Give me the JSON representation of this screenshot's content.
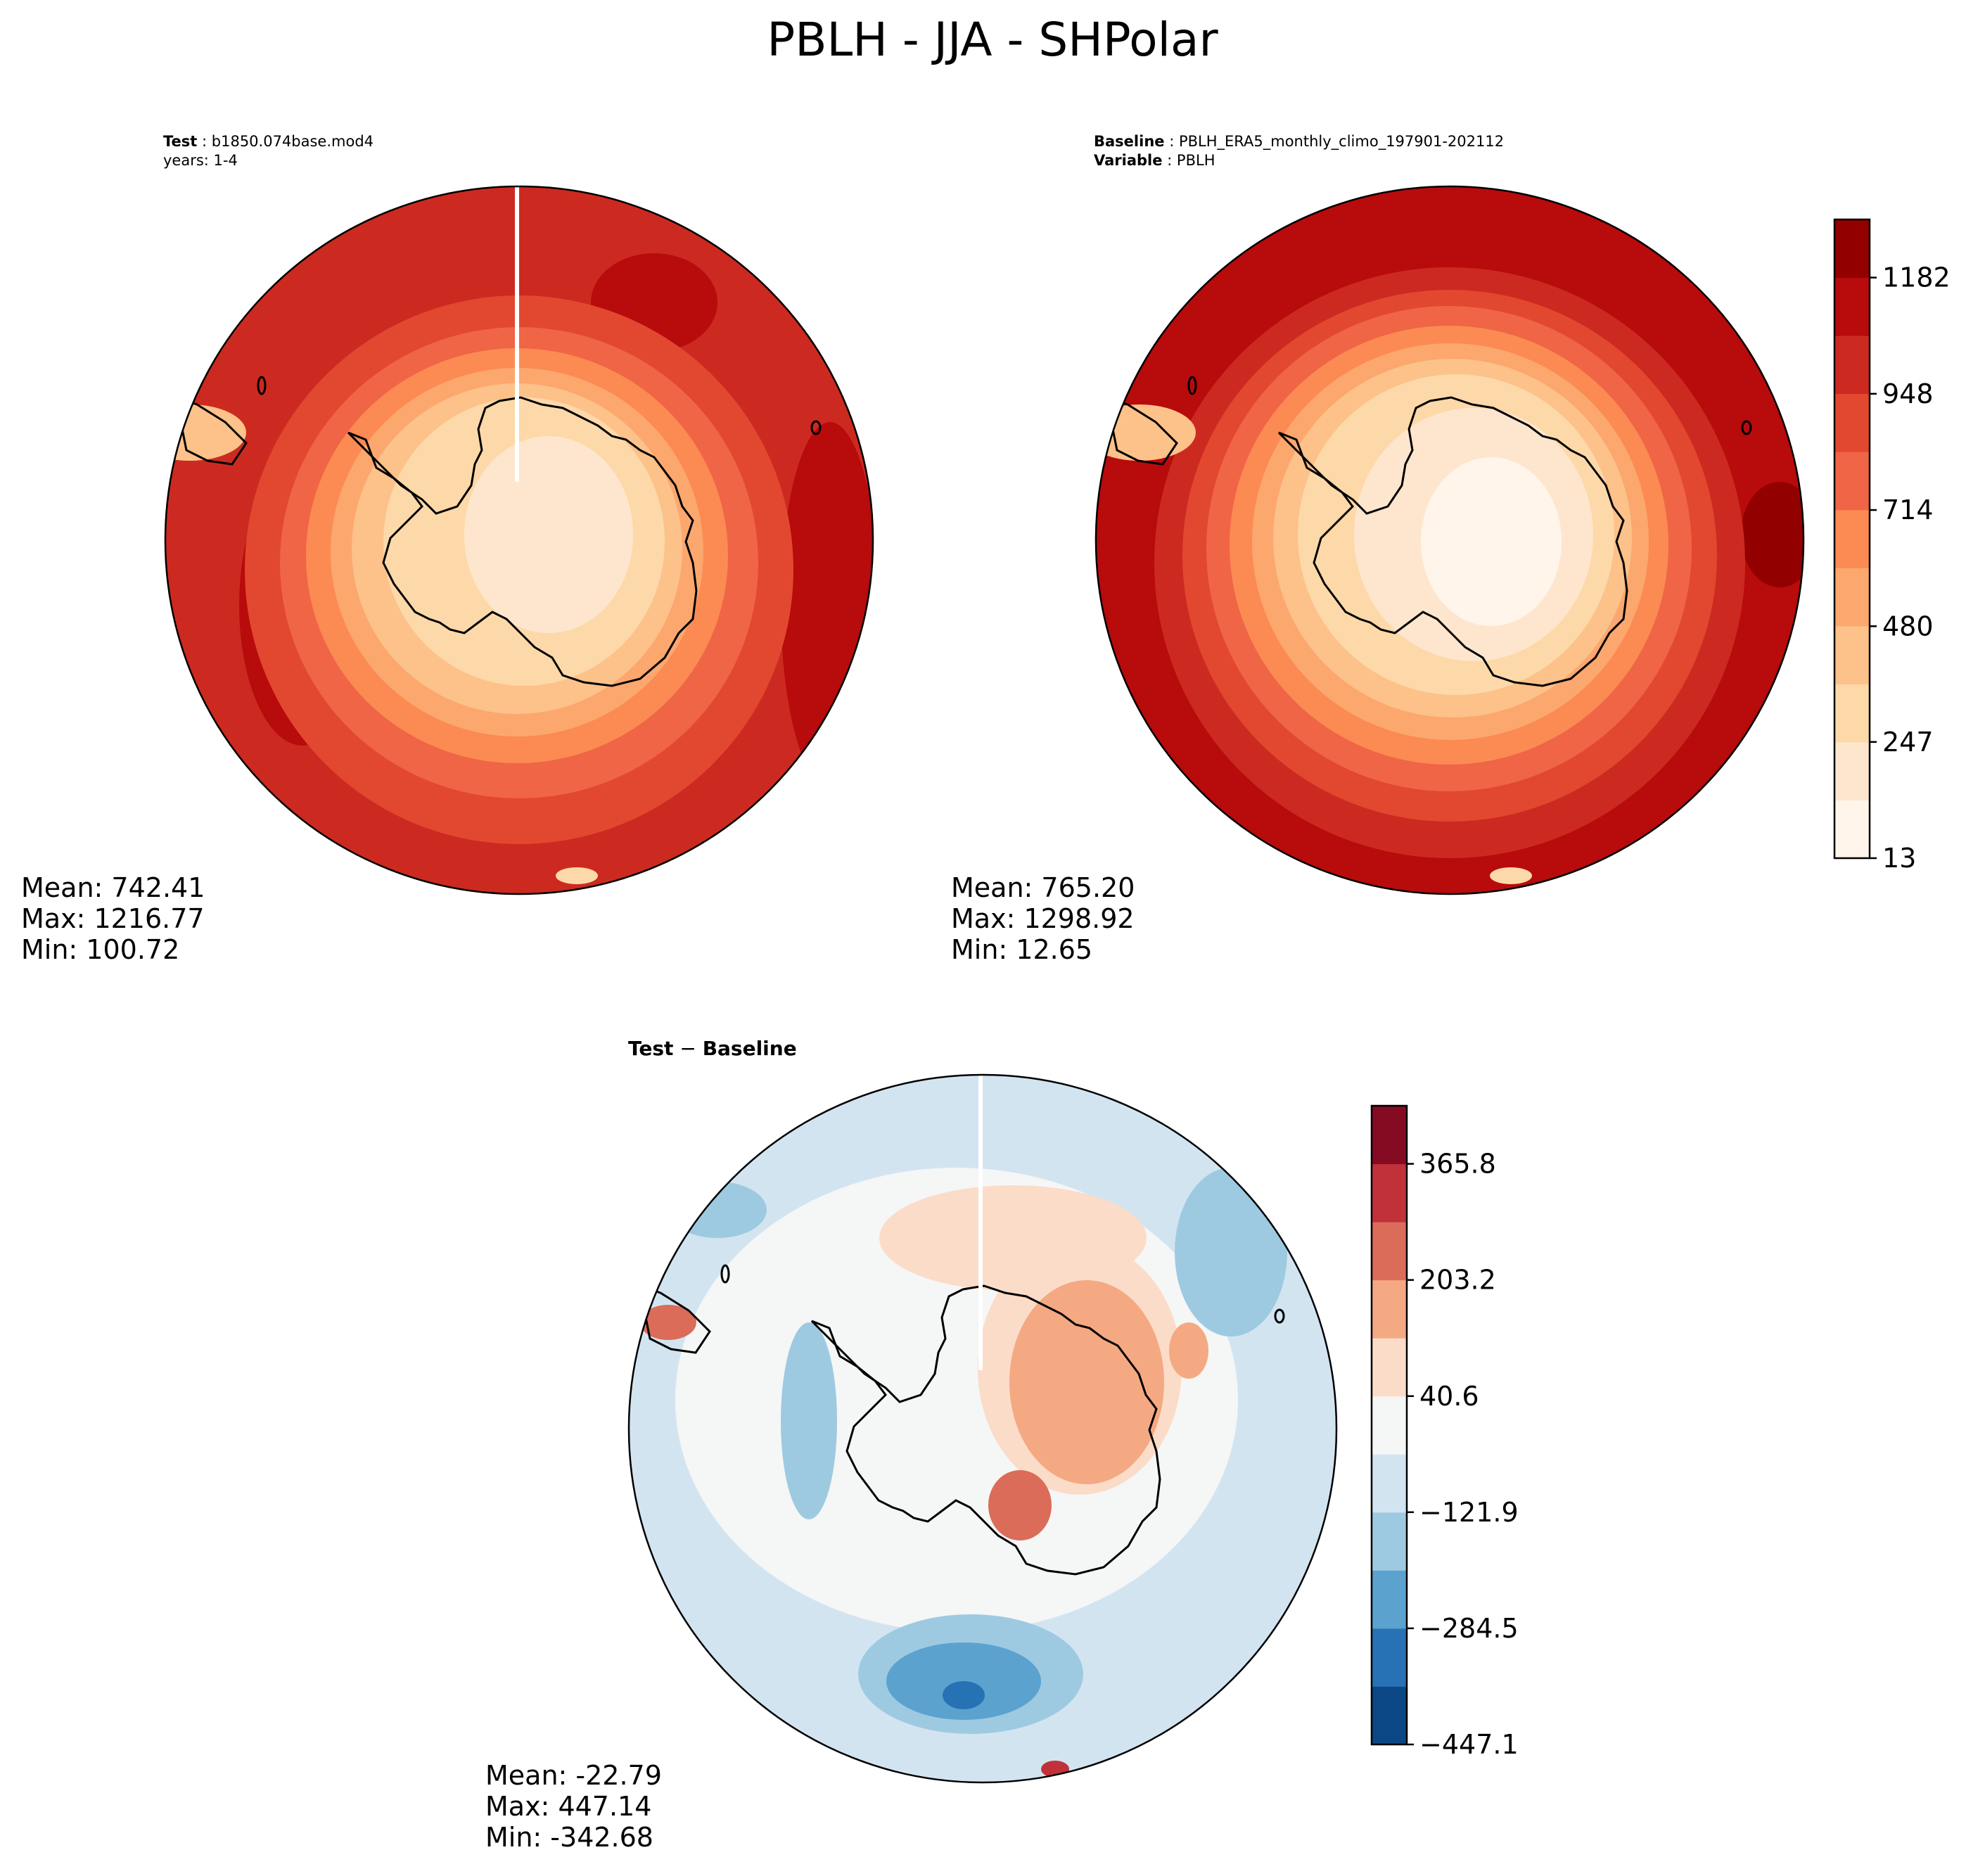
{
  "figure": {
    "title": "PBLH - JJA - SHPolar"
  },
  "panels": {
    "test": {
      "label": "Test",
      "case_name": "b1850.074base.mod4",
      "years_line": "years: 1-4",
      "stats": {
        "mean": "Mean: 742.41",
        "max": "Max: 1216.77",
        "min": "Min: 100.72"
      }
    },
    "baseline": {
      "label": "Baseline",
      "case_name": "PBLH_ERA5_monthly_climo_197901-202112",
      "variable_label": "Variable",
      "variable_value": "PBLH",
      "stats": {
        "mean": "Mean: 765.20",
        "max": "Max: 1298.92",
        "min": "Min: 12.65"
      }
    },
    "diff": {
      "title_left": "Test",
      "title_op": " − ",
      "title_right": "Baseline",
      "stats": {
        "mean": "Mean: -22.79",
        "max": "Max: 447.14",
        "min": "Min: -342.68"
      }
    }
  },
  "chart_data": [
    {
      "type": "heatmap",
      "projection": "south-polar-stereographic",
      "variable": "PBLH",
      "title": "Test : b1850.074base.mod4",
      "mean": 742.41,
      "max": 1216.77,
      "min": 100.72,
      "field_description": "low values (about 130-360) over Antarctica rising to about 950-1180 over the surrounding Southern Ocean"
    },
    {
      "type": "heatmap",
      "projection": "south-polar-stereographic",
      "variable": "PBLH",
      "title": "Baseline : PBLH_ERA5_monthly_climo_197901-202112",
      "mean": 765.2,
      "max": 1298.92,
      "min": 12.65,
      "colorbar": {
        "ticks": [
          13,
          247,
          480,
          714,
          948,
          1182
        ],
        "tick_labels": [
          "13",
          "247",
          "480",
          "714",
          "948",
          "1182"
        ],
        "range": [
          13,
          1299
        ],
        "levels": 11,
        "colors": [
          "#fff5eb",
          "#fee6ce",
          "#fdd9a9",
          "#fdc18a",
          "#fca76e",
          "#fb8b53",
          "#f06545",
          "#e2482f",
          "#cc2a20",
          "#b80b0c",
          "#920000"
        ]
      }
    },
    {
      "type": "heatmap",
      "projection": "south-polar-stereographic",
      "variable": "PBLH difference",
      "title": "Test − Baseline",
      "mean": -22.79,
      "max": 447.14,
      "min": -342.68,
      "colorbar": {
        "ticks": [
          -447.1,
          -284.5,
          -121.9,
          40.6,
          203.2,
          365.8
        ],
        "tick_labels": [
          "−447.1",
          "−284.5",
          "−121.9",
          "40.6",
          "203.2",
          "365.8"
        ],
        "range": [
          -447.1,
          447.1
        ],
        "levels": 11,
        "colors": [
          "#0b4784",
          "#2672b4",
          "#5ba2cf",
          "#9ecae1",
          "#d3e4f1",
          "#f5f6f6",
          "#fbdcc9",
          "#f4a983",
          "#db6c5a",
          "#c1313a",
          "#850b22"
        ]
      }
    }
  ]
}
